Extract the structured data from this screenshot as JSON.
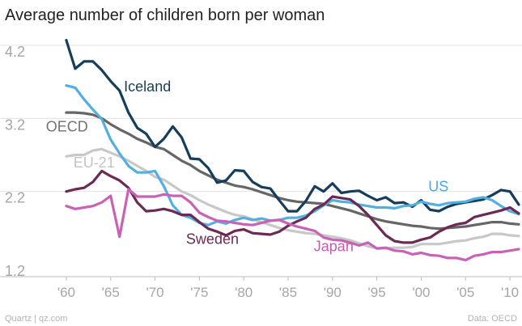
{
  "chart_data": {
    "type": "line",
    "title": "Average number of children born per woman",
    "xlabel": "",
    "ylabel": "",
    "ylim": [
      1.2,
      4.2
    ],
    "xlim": [
      1958,
      2012
    ],
    "yticks": [
      {
        "value": 4.2,
        "label": "4.2"
      },
      {
        "value": 3.2,
        "label": "3.2"
      },
      {
        "value": 2.2,
        "label": "2.2"
      },
      {
        "value": 1.2,
        "label": "1.2"
      }
    ],
    "xticks": [
      {
        "value": 1960,
        "label": "'60"
      },
      {
        "value": 1965,
        "label": "'65"
      },
      {
        "value": 1970,
        "label": "'70"
      },
      {
        "value": 1975,
        "label": "'75"
      },
      {
        "value": 1980,
        "label": "'80"
      },
      {
        "value": 1985,
        "label": "'85"
      },
      {
        "value": 1990,
        "label": "'90"
      },
      {
        "value": 1995,
        "label": "'95"
      },
      {
        "value": 2000,
        "label": "'00"
      },
      {
        "value": 2005,
        "label": "'05"
      },
      {
        "value": 2010,
        "label": "'10"
      }
    ],
    "x": [
      1960,
      1961,
      1962,
      1963,
      1964,
      1965,
      1966,
      1967,
      1968,
      1969,
      1970,
      1971,
      1972,
      1973,
      1974,
      1975,
      1976,
      1977,
      1978,
      1979,
      1980,
      1981,
      1982,
      1983,
      1984,
      1985,
      1986,
      1987,
      1988,
      1989,
      1990,
      1991,
      1992,
      1993,
      1994,
      1995,
      1996,
      1997,
      1998,
      1999,
      2000,
      2001,
      2002,
      2003,
      2004,
      2005,
      2006,
      2007,
      2008,
      2009,
      2010,
      2011
    ],
    "series": [
      {
        "name": "EU-21",
        "label": "EU-21",
        "color": "#c8c8c8",
        "label_color": "#c4c4c4",
        "label_anchor": {
          "x": 1960.8,
          "y": 2.53
        },
        "values": [
          2.68,
          2.7,
          2.7,
          2.76,
          2.78,
          2.73,
          2.68,
          2.62,
          2.55,
          2.48,
          2.4,
          2.36,
          2.28,
          2.2,
          2.15,
          2.08,
          2.02,
          1.97,
          1.92,
          1.88,
          1.86,
          1.82,
          1.78,
          1.74,
          1.7,
          1.67,
          1.65,
          1.63,
          1.62,
          1.6,
          1.58,
          1.56,
          1.53,
          1.49,
          1.45,
          1.42,
          1.42,
          1.43,
          1.43,
          1.44,
          1.48,
          1.48,
          1.48,
          1.5,
          1.52,
          1.53,
          1.56,
          1.58,
          1.62,
          1.62,
          1.6,
          1.59
        ]
      },
      {
        "name": "OECD",
        "label": "OECD",
        "color": "#666666",
        "label_color": "#737373",
        "label_anchor": {
          "x": 1957.7,
          "y": 3.02
        },
        "values": [
          3.28,
          3.28,
          3.27,
          3.25,
          3.2,
          3.12,
          3.05,
          2.99,
          2.92,
          2.87,
          2.81,
          2.78,
          2.7,
          2.62,
          2.56,
          2.48,
          2.42,
          2.36,
          2.32,
          2.28,
          2.26,
          2.23,
          2.19,
          2.15,
          2.11,
          2.08,
          2.06,
          2.05,
          2.04,
          2.03,
          2.0,
          1.97,
          1.94,
          1.9,
          1.86,
          1.82,
          1.79,
          1.77,
          1.75,
          1.73,
          1.72,
          1.7,
          1.69,
          1.7,
          1.71,
          1.72,
          1.74,
          1.76,
          1.78,
          1.78,
          1.76,
          1.75
        ]
      },
      {
        "name": "Iceland",
        "label": "Iceland",
        "color": "#163d5c",
        "label_color": "#163d5c",
        "label_anchor": {
          "x": 1966.5,
          "y": 3.57
        },
        "values": [
          4.27,
          3.88,
          3.98,
          3.98,
          3.86,
          3.71,
          3.58,
          3.28,
          3.07,
          2.99,
          2.81,
          2.92,
          3.09,
          2.94,
          2.65,
          2.64,
          2.52,
          2.32,
          2.35,
          2.49,
          2.48,
          2.33,
          2.26,
          2.24,
          2.08,
          1.93,
          1.93,
          2.07,
          2.27,
          2.2,
          2.31,
          2.18,
          2.2,
          2.21,
          2.14,
          2.08,
          2.12,
          2.04,
          2.05,
          1.99,
          2.08,
          1.95,
          1.93,
          1.99,
          2.03,
          2.05,
          2.07,
          2.09,
          2.15,
          2.22,
          2.2,
          2.02
        ]
      },
      {
        "name": "US",
        "label": "US",
        "color": "#53afe0",
        "label_color": "#4aa8de",
        "label_anchor": {
          "x": 2000.8,
          "y": 2.2
        },
        "values": [
          3.65,
          3.62,
          3.46,
          3.32,
          3.19,
          2.91,
          2.72,
          2.55,
          2.46,
          2.46,
          2.48,
          2.27,
          2.01,
          1.88,
          1.84,
          1.77,
          1.74,
          1.79,
          1.76,
          1.81,
          1.84,
          1.81,
          1.83,
          1.8,
          1.81,
          1.84,
          1.84,
          1.87,
          1.93,
          2.01,
          2.08,
          2.06,
          2.05,
          2.02,
          2.0,
          1.98,
          1.98,
          1.97,
          2.0,
          2.01,
          2.06,
          2.03,
          2.01,
          2.04,
          2.05,
          2.06,
          2.1,
          2.12,
          2.08,
          2.0,
          1.93,
          1.89
        ]
      },
      {
        "name": "Sweden",
        "label": "Sweden",
        "color": "#6b2a53",
        "label_color": "#6b2a53",
        "label_anchor": {
          "x": 1973.5,
          "y": 1.48
        },
        "values": [
          2.2,
          2.23,
          2.25,
          2.33,
          2.48,
          2.41,
          2.35,
          2.25,
          2.05,
          1.93,
          1.94,
          1.96,
          1.93,
          1.88,
          1.88,
          1.78,
          1.69,
          1.65,
          1.6,
          1.66,
          1.68,
          1.63,
          1.62,
          1.61,
          1.65,
          1.73,
          1.79,
          1.84,
          1.96,
          2.02,
          2.13,
          2.11,
          2.09,
          2.0,
          1.88,
          1.74,
          1.6,
          1.52,
          1.5,
          1.5,
          1.54,
          1.57,
          1.65,
          1.71,
          1.75,
          1.77,
          1.85,
          1.88,
          1.91,
          1.94,
          1.98,
          1.9
        ]
      },
      {
        "name": "Japan",
        "label": "Japan",
        "color": "#c962b7",
        "label_color": "#c25cb3",
        "label_anchor": {
          "x": 1987.9,
          "y": 1.38
        },
        "values": [
          2.0,
          1.96,
          1.98,
          2.0,
          2.05,
          2.14,
          1.58,
          2.23,
          2.13,
          2.13,
          2.13,
          2.16,
          2.14,
          2.14,
          2.05,
          1.91,
          1.85,
          1.8,
          1.79,
          1.77,
          1.75,
          1.74,
          1.77,
          1.8,
          1.81,
          1.76,
          1.72,
          1.69,
          1.66,
          1.57,
          1.54,
          1.53,
          1.5,
          1.46,
          1.5,
          1.42,
          1.43,
          1.39,
          1.38,
          1.34,
          1.36,
          1.33,
          1.32,
          1.29,
          1.29,
          1.26,
          1.32,
          1.34,
          1.37,
          1.37,
          1.39,
          1.41
        ]
      }
    ]
  },
  "footer": {
    "source_left": "Quartz | qz.com",
    "source_right": "Data: OECD"
  }
}
